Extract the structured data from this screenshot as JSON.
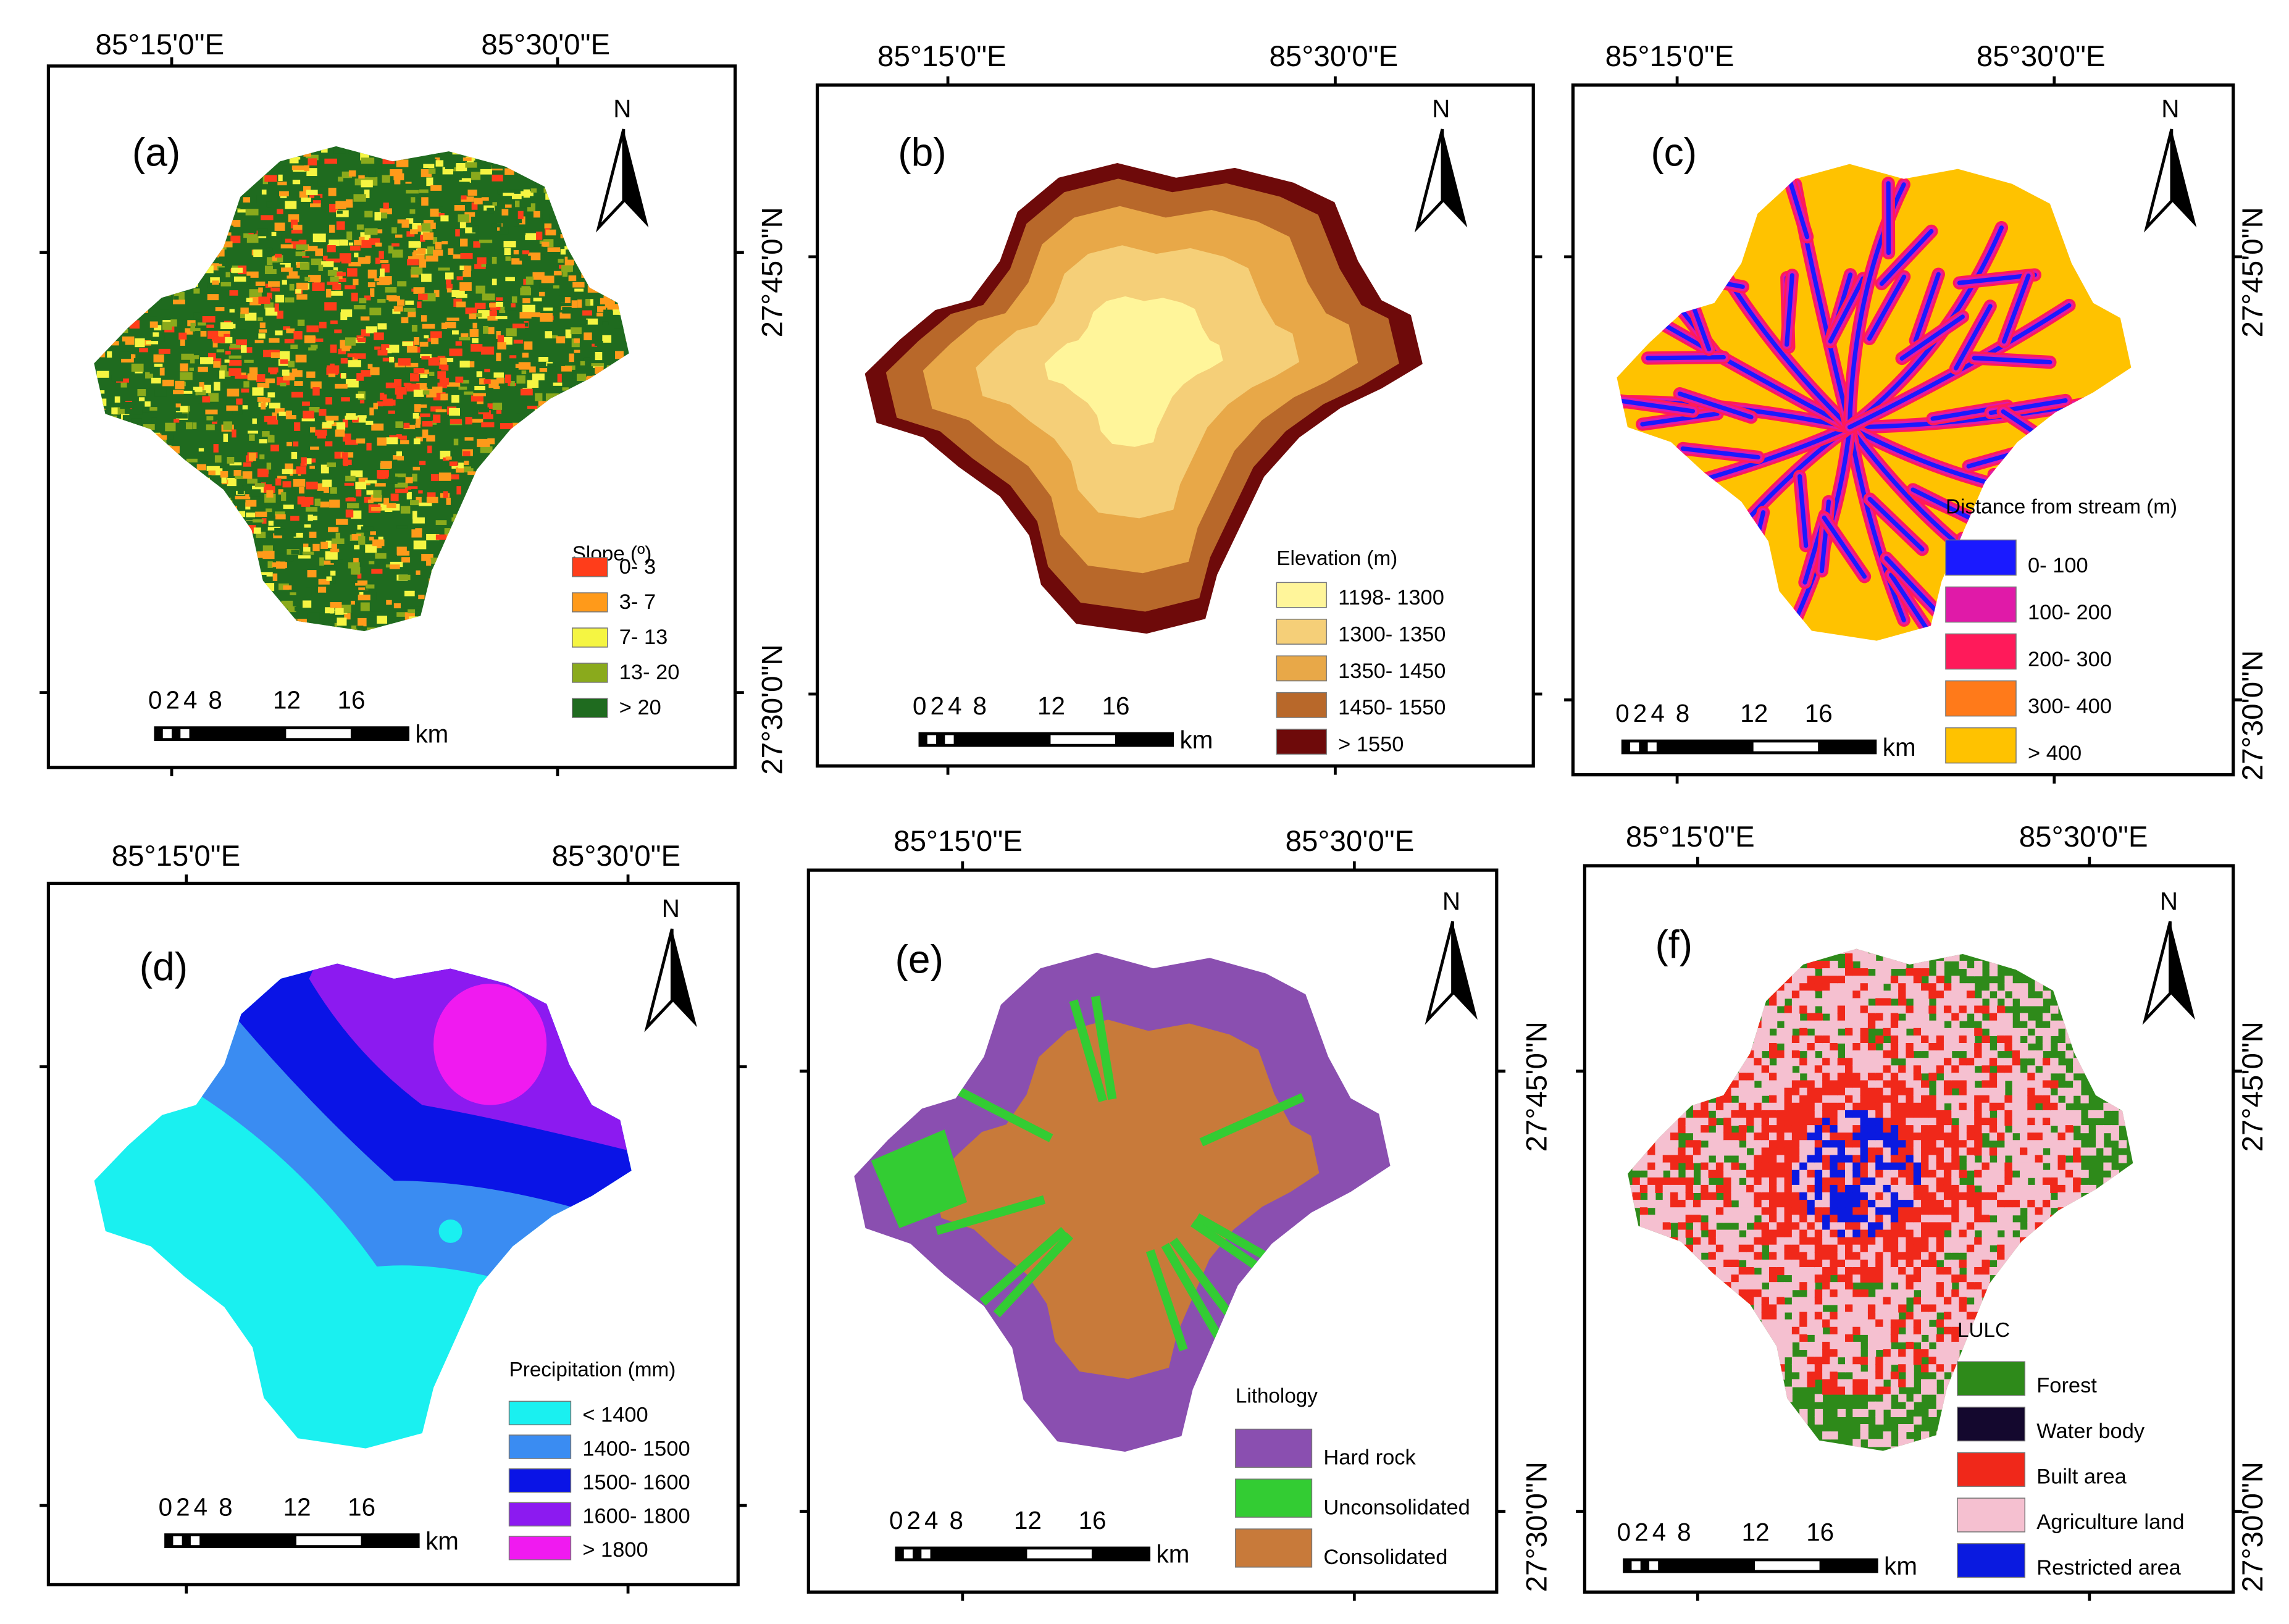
{
  "panels": [
    {
      "id": "a",
      "label": "(a)",
      "north": "N",
      "lon_labels": [
        "85°15'0\"E",
        "85°30'0\"E"
      ],
      "lat_labels": [],
      "scale": {
        "ticks": [
          "0",
          "2",
          "4",
          "8",
          "12",
          "16"
        ],
        "unit": "km"
      },
      "legend": {
        "title": "Slope (º)",
        "items": [
          {
            "label": "0- 3",
            "color": "#ff3d1a"
          },
          {
            "label": "3- 7",
            "color": "#ff9a1a"
          },
          {
            "label": "7- 13",
            "color": "#f5f542"
          },
          {
            "label": "13- 20",
            "color": "#8aaa1c"
          },
          {
            "label": "> 20",
            "color": "#1f6b1f"
          }
        ]
      }
    },
    {
      "id": "b",
      "label": "(b)",
      "north": "N",
      "lon_labels": [
        "85°15'0\"E",
        "85°30'0\"E"
      ],
      "lat_labels": [
        "27°45'0\"N",
        "27°30'0\"N"
      ],
      "scale": {
        "ticks": [
          "0",
          "2",
          "4",
          "8",
          "12",
          "16"
        ],
        "unit": "km"
      },
      "legend": {
        "title": "Elevation (m)",
        "items": [
          {
            "label": "1198- 1300",
            "color": "#fff59a"
          },
          {
            "label": "1300- 1350",
            "color": "#f5cf78"
          },
          {
            "label": "1350- 1450",
            "color": "#e8a848"
          },
          {
            "label": "1450- 1550",
            "color": "#b8682a"
          },
          {
            "label": "> 1550",
            "color": "#6e0a0a"
          }
        ]
      }
    },
    {
      "id": "c",
      "label": "(c)",
      "north": "N",
      "lon_labels": [
        "85°15'0\"E",
        "85°30'0\"E"
      ],
      "lat_labels": [
        "27°45'0\"N",
        "27°30'0\"N"
      ],
      "scale": {
        "ticks": [
          "0",
          "2",
          "4",
          "8",
          "12",
          "16"
        ],
        "unit": "km"
      },
      "legend": {
        "title": "Distance from stream (m)",
        "items": [
          {
            "label": "0- 100",
            "color": "#1a1aff"
          },
          {
            "label": "100- 200",
            "color": "#e01aa8"
          },
          {
            "label": "200- 300",
            "color": "#ff1a5a"
          },
          {
            "label": "300- 400",
            "color": "#ff7a1a"
          },
          {
            "label": "> 400",
            "color": "#ffc200"
          }
        ]
      }
    },
    {
      "id": "d",
      "label": "(d)",
      "north": "N",
      "lon_labels": [
        "85°15'0\"E",
        "85°30'0\"E"
      ],
      "lat_labels": [],
      "scale": {
        "ticks": [
          "0",
          "2",
          "4",
          "8",
          "12",
          "16"
        ],
        "unit": "km"
      },
      "legend": {
        "title": "Precipitation (mm)",
        "items": [
          {
            "label": "< 1400",
            "color": "#1af0f0"
          },
          {
            "label": "1400- 1500",
            "color": "#3a8cf2"
          },
          {
            "label": "1500- 1600",
            "color": "#0a14e6"
          },
          {
            "label": "1600- 1800",
            "color": "#8c1af0"
          },
          {
            "label": "> 1800",
            "color": "#f01af0"
          }
        ]
      }
    },
    {
      "id": "e",
      "label": "(e)",
      "north": "N",
      "lon_labels": [
        "85°15'0\"E",
        "85°30'0\"E"
      ],
      "lat_labels": [
        "27°45'0\"N",
        "27°30'0\"N"
      ],
      "scale": {
        "ticks": [
          "0",
          "2",
          "4",
          "8",
          "12",
          "16"
        ],
        "unit": "km"
      },
      "legend": {
        "title": "Lithology",
        "items": [
          {
            "label": "Hard rock",
            "color": "#8a4fb0"
          },
          {
            "label": "Unconsolidated",
            "color": "#33cc33"
          },
          {
            "label": "Consolidated",
            "color": "#c87a3a"
          }
        ]
      }
    },
    {
      "id": "f",
      "label": "(f)",
      "north": "N",
      "lon_labels": [
        "85°15'0\"E",
        "85°30'0\"E"
      ],
      "lat_labels": [
        "27°45'0\"N",
        "27°30'0\"N"
      ],
      "scale": {
        "ticks": [
          "0",
          "2",
          "4",
          "8",
          "12",
          "16"
        ],
        "unit": "km"
      },
      "legend": {
        "title": "LULC",
        "items": [
          {
            "label": "Forest",
            "color": "#2e8a1a"
          },
          {
            "label": "Water body",
            "color": "#14082e"
          },
          {
            "label": "Built area",
            "color": "#f0281a"
          },
          {
            "label": "Agriculture land",
            "color": "#f5c0d0"
          },
          {
            "label": "Restricted area",
            "color": "#0a1ae0"
          }
        ]
      }
    }
  ]
}
